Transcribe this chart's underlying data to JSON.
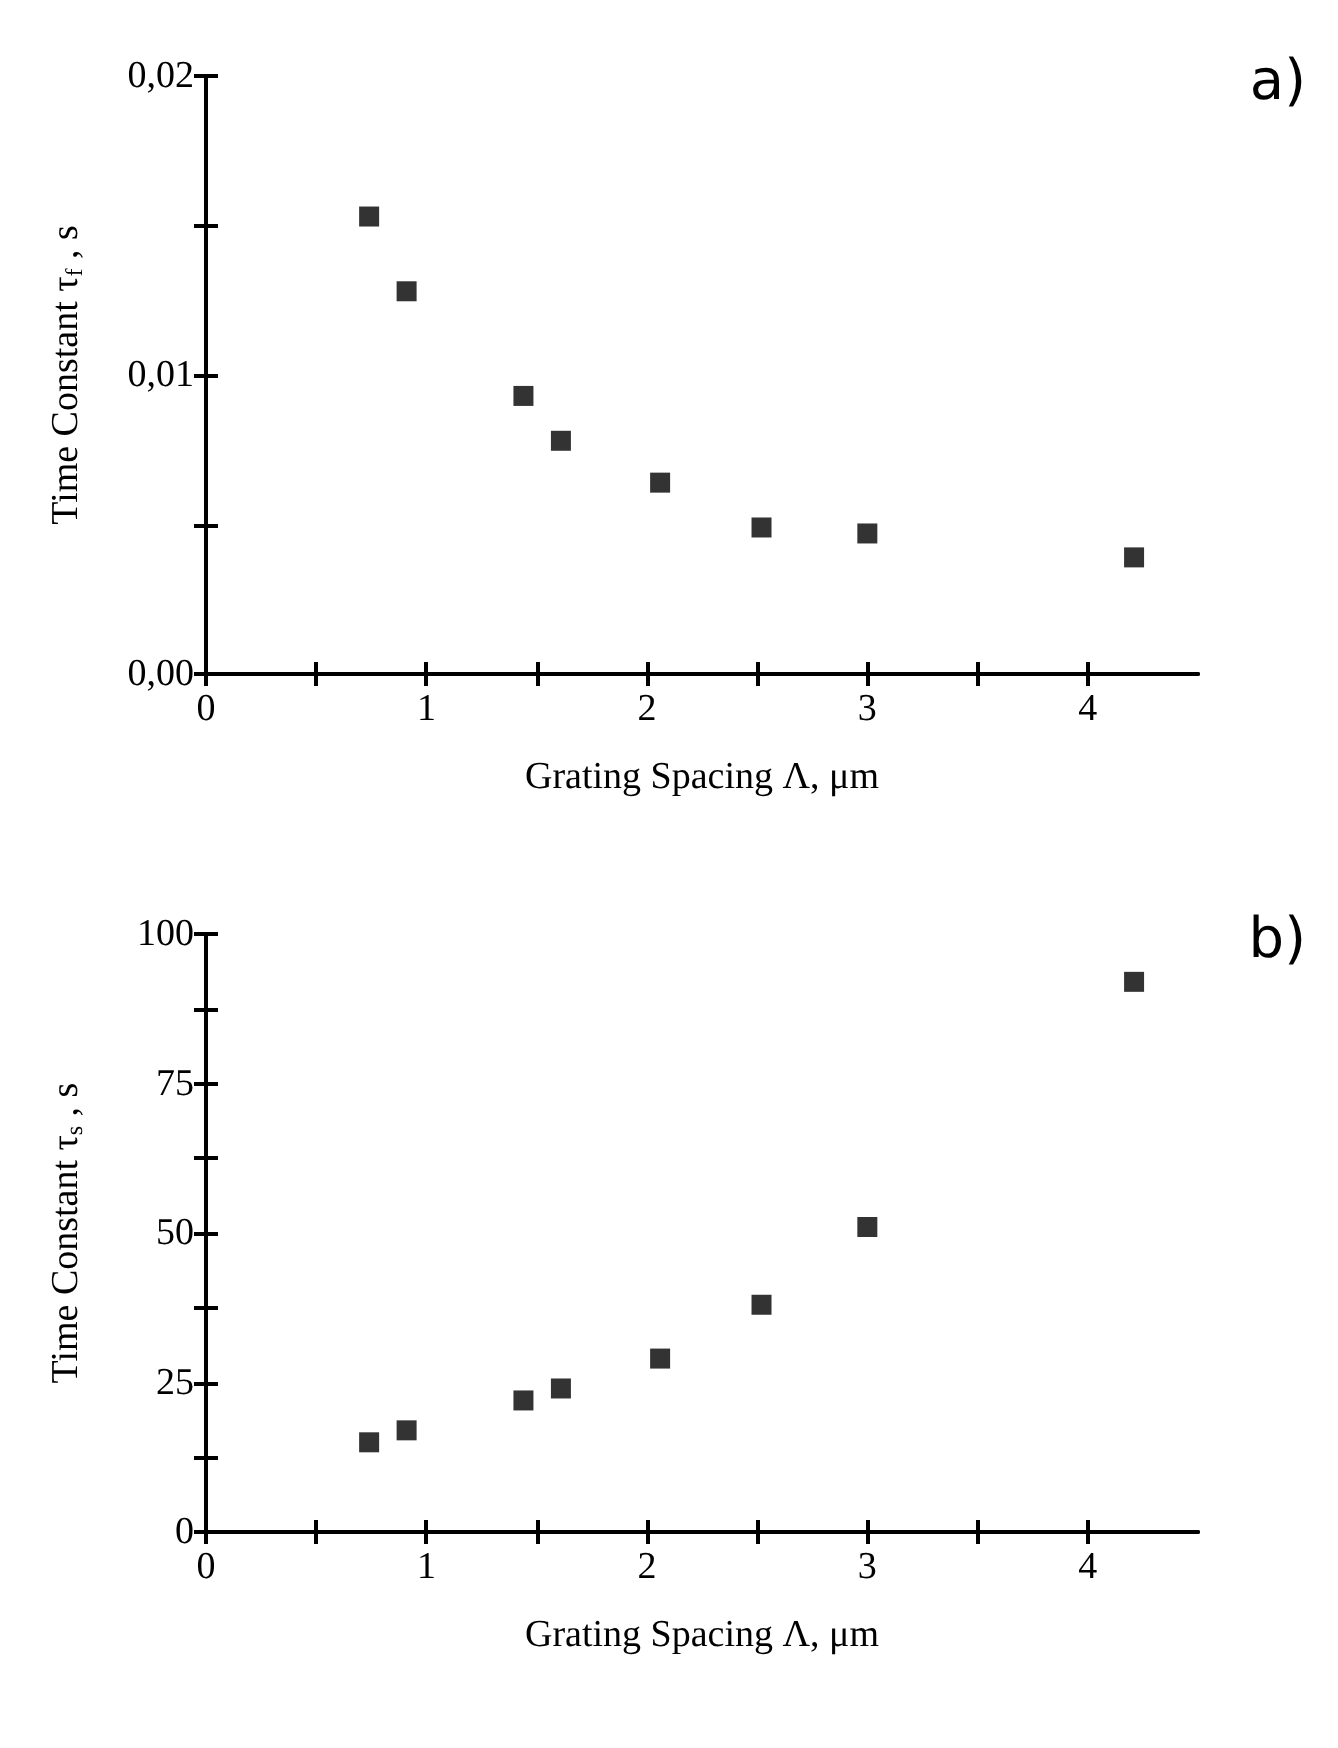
{
  "chart_data": [
    {
      "type": "scatter",
      "xlabel": "Grating Spacing Λ, μm",
      "ylabel": "Time Constant τ$_{f}$ , s",
      "annotations": [
        "a)"
      ],
      "marker": "square",
      "x": [
        0.74,
        0.91,
        1.44,
        1.61,
        2.06,
        2.52,
        3.0,
        4.21
      ],
      "series": [
        {
          "color": "#000000",
          "values": [
            0.0153,
            0.0128,
            0.0093,
            0.0078,
            0.0064,
            0.0049,
            0.0047,
            0.0039
          ]
        }
      ],
      "xlim": [
        0,
        4.5
      ],
      "xticks": [
        0,
        {
          "value": 0.5,
          "label": null
        },
        1,
        {
          "value": 1.5,
          "label": null
        },
        2,
        {
          "value": 2.5,
          "label": null
        },
        3,
        {
          "value": 3.5,
          "label": null
        },
        4
      ],
      "ylim": [
        0,
        0.02
      ],
      "yticks": [
        {
          "value": 0,
          "label": "0,00"
        },
        {
          "value": 0.005,
          "label": null
        },
        {
          "value": 0.01,
          "label": "0,01"
        },
        {
          "value": 0.015,
          "label": null
        },
        {
          "value": 0.02,
          "label": "0,02"
        }
      ]
    },
    {
      "type": "scatter",
      "xlabel": "Grating Spacing Λ, μm",
      "ylabel": "Time Constant τ$_{s}$ , s",
      "annotations": [
        "b)"
      ],
      "marker": "square",
      "x": [
        0.74,
        0.91,
        1.44,
        1.61,
        2.06,
        2.52,
        3.0,
        4.21
      ],
      "series": [
        {
          "color": "#000000",
          "values": [
            15,
            17,
            22,
            24,
            29,
            38,
            51,
            92
          ]
        }
      ],
      "xlim": [
        0,
        4.5
      ],
      "xticks": [
        0,
        {
          "value": 0.5,
          "label": null
        },
        1,
        {
          "value": 1.5,
          "label": null
        },
        2,
        {
          "value": 2.5,
          "label": null
        },
        3,
        {
          "value": 3.5,
          "label": null
        },
        4
      ],
      "ylim": [
        0,
        100
      ],
      "yticks": [
        0,
        {
          "value": 12.5,
          "label": null
        },
        25,
        {
          "value": 37.5,
          "label": null
        },
        50,
        {
          "value": 62.5,
          "label": null
        },
        75,
        {
          "value": 87.5,
          "label": null
        },
        100
      ]
    }
  ]
}
